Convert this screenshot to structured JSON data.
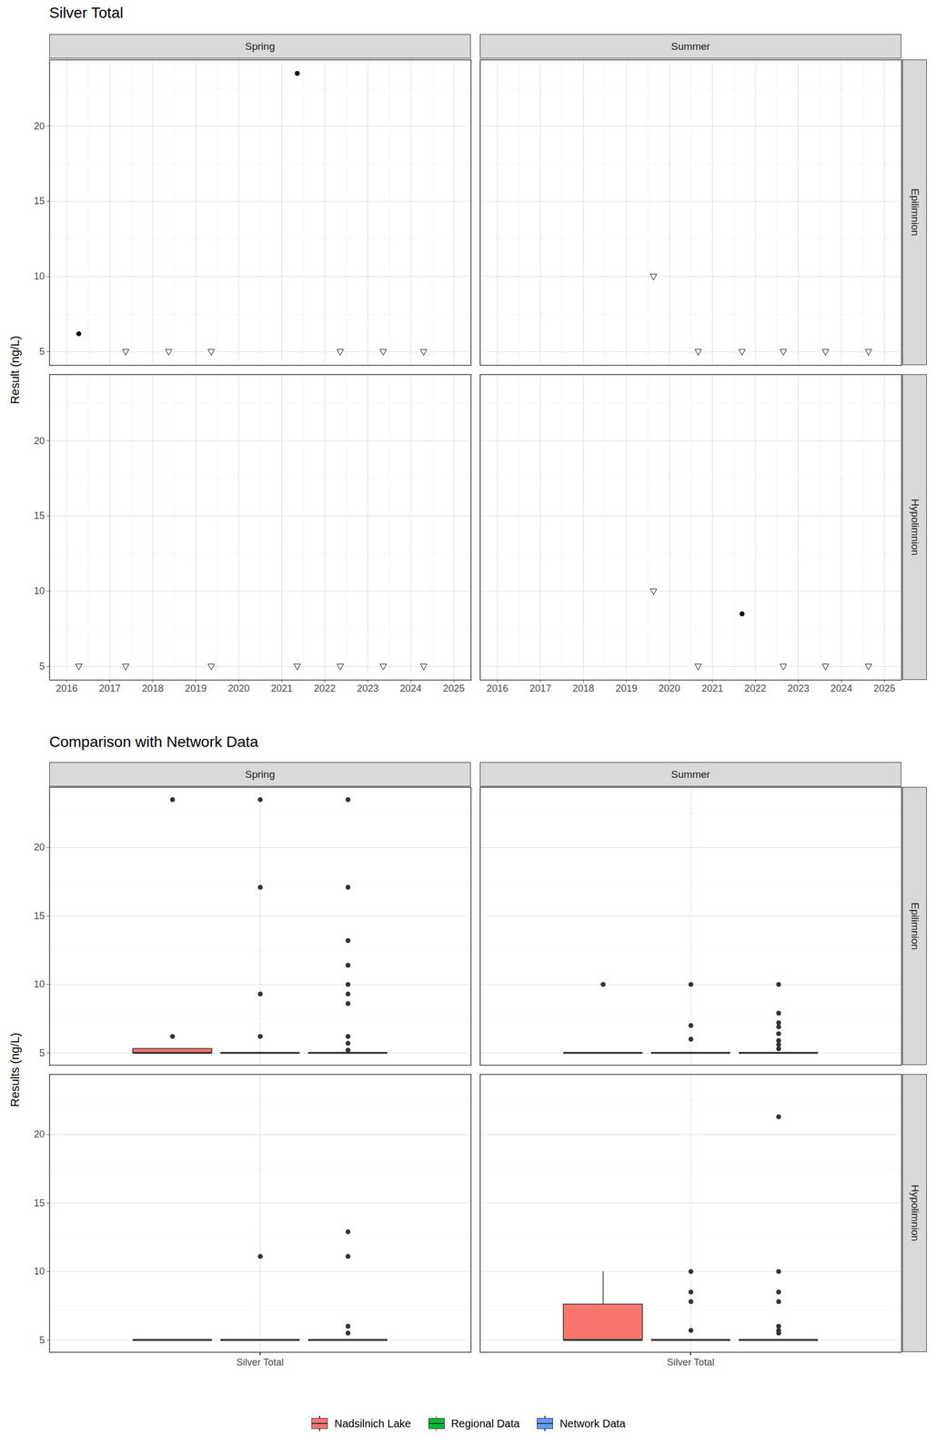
{
  "chart_data": [
    {
      "type": "scatter",
      "title": "Silver Total",
      "y_label": "Result (ng/L)",
      "columns": [
        "Spring",
        "Summer"
      ],
      "rows": [
        "Epilimnion",
        "Hypolimnion"
      ],
      "xlim": [
        2015.6,
        2025.4
      ],
      "xticks": [
        2016,
        2017,
        2018,
        2019,
        2020,
        2021,
        2022,
        2023,
        2024,
        2025
      ],
      "ylim": [
        4.1,
        24.4
      ],
      "yticks": [
        5,
        10,
        15,
        20
      ],
      "grid": true,
      "panels": [
        {
          "column": "Spring",
          "row": "Epilimnion",
          "points": [
            {
              "x": 2016.28,
              "y": 6.2,
              "marker": "circle"
            },
            {
              "x": 2017.37,
              "y": 5,
              "marker": "triangle-down"
            },
            {
              "x": 2018.37,
              "y": 5,
              "marker": "triangle-down"
            },
            {
              "x": 2019.36,
              "y": 5,
              "marker": "triangle-down"
            },
            {
              "x": 2021.36,
              "y": 23.5,
              "marker": "circle"
            },
            {
              "x": 2022.36,
              "y": 5,
              "marker": "triangle-down"
            },
            {
              "x": 2023.36,
              "y": 5,
              "marker": "triangle-down"
            },
            {
              "x": 2024.3,
              "y": 5,
              "marker": "triangle-down"
            }
          ]
        },
        {
          "column": "Summer",
          "row": "Epilimnion",
          "points": [
            {
              "x": 2019.63,
              "y": 10,
              "marker": "triangle-down"
            },
            {
              "x": 2020.67,
              "y": 5,
              "marker": "triangle-down"
            },
            {
              "x": 2021.69,
              "y": 5,
              "marker": "triangle-down"
            },
            {
              "x": 2022.65,
              "y": 5,
              "marker": "triangle-down"
            },
            {
              "x": 2023.63,
              "y": 5,
              "marker": "triangle-down"
            },
            {
              "x": 2024.63,
              "y": 5,
              "marker": "triangle-down"
            }
          ]
        },
        {
          "column": "Spring",
          "row": "Hypolimnion",
          "points": [
            {
              "x": 2016.28,
              "y": 5,
              "marker": "triangle-down"
            },
            {
              "x": 2017.37,
              "y": 5,
              "marker": "triangle-down"
            },
            {
              "x": 2019.36,
              "y": 5,
              "marker": "triangle-down"
            },
            {
              "x": 2021.36,
              "y": 5,
              "marker": "triangle-down"
            },
            {
              "x": 2022.36,
              "y": 5,
              "marker": "triangle-down"
            },
            {
              "x": 2023.36,
              "y": 5,
              "marker": "triangle-down"
            },
            {
              "x": 2024.3,
              "y": 5,
              "marker": "triangle-down"
            }
          ]
        },
        {
          "column": "Summer",
          "row": "Hypolimnion",
          "points": [
            {
              "x": 2019.63,
              "y": 10,
              "marker": "triangle-down"
            },
            {
              "x": 2020.67,
              "y": 5,
              "marker": "triangle-down"
            },
            {
              "x": 2021.69,
              "y": 8.5,
              "marker": "circle"
            },
            {
              "x": 2022.65,
              "y": 5,
              "marker": "triangle-down"
            },
            {
              "x": 2023.63,
              "y": 5,
              "marker": "triangle-down"
            },
            {
              "x": 2024.63,
              "y": 5,
              "marker": "triangle-down"
            }
          ]
        }
      ]
    },
    {
      "type": "box",
      "title": "Comparison with Network Data",
      "y_label": "Results (ng/L)",
      "categories": [
        "Silver Total"
      ],
      "columns": [
        "Spring",
        "Summer"
      ],
      "rows": [
        "Epilimnion",
        "Hypolimnion"
      ],
      "ylim": [
        4.1,
        24.4
      ],
      "yticks": [
        5,
        10,
        15,
        20
      ],
      "grid": true,
      "legend": "bottom",
      "series": [
        {
          "name": "Nadsilnich Lake",
          "color": "#F8766D"
        },
        {
          "name": "Regional Data",
          "color": "#00BA38"
        },
        {
          "name": "Network Data",
          "color": "#619CFF"
        }
      ],
      "panels": [
        {
          "column": "Spring",
          "row": "Epilimnion",
          "boxes": [
            {
              "series": "Nadsilnich Lake",
              "q1": 5,
              "median": 5,
              "q3": 5.3,
              "whisker_low": 5,
              "whisker_high": 5.3,
              "outliers": [
                6.2,
                23.5
              ]
            },
            {
              "series": "Regional Data",
              "q1": 5,
              "median": 5,
              "q3": 5,
              "whisker_low": 5,
              "whisker_high": 5,
              "outliers": [
                6.2,
                9.3,
                17.1,
                23.5
              ]
            },
            {
              "series": "Network Data",
              "q1": 5,
              "median": 5,
              "q3": 5,
              "whisker_low": 5,
              "whisker_high": 5,
              "outliers": [
                5.2,
                5.7,
                6.2,
                8.6,
                9.3,
                10,
                11.4,
                13.2,
                17.1,
                23.5
              ]
            }
          ]
        },
        {
          "column": "Summer",
          "row": "Epilimnion",
          "boxes": [
            {
              "series": "Nadsilnich Lake",
              "q1": 5,
              "median": 5,
              "q3": 5,
              "whisker_low": 5,
              "whisker_high": 5,
              "outliers": [
                10
              ]
            },
            {
              "series": "Regional Data",
              "q1": 5,
              "median": 5,
              "q3": 5,
              "whisker_low": 5,
              "whisker_high": 5,
              "outliers": [
                6,
                7,
                10
              ]
            },
            {
              "series": "Network Data",
              "q1": 5,
              "median": 5,
              "q3": 5,
              "whisker_low": 5,
              "whisker_high": 5,
              "outliers": [
                5.3,
                5.6,
                5.9,
                6.4,
                6.9,
                7.2,
                7.9,
                10
              ]
            }
          ]
        },
        {
          "column": "Spring",
          "row": "Hypolimnion",
          "boxes": [
            {
              "series": "Nadsilnich Lake",
              "q1": 5,
              "median": 5,
              "q3": 5,
              "whisker_low": 5,
              "whisker_high": 5,
              "outliers": []
            },
            {
              "series": "Regional Data",
              "q1": 5,
              "median": 5,
              "q3": 5,
              "whisker_low": 5,
              "whisker_high": 5,
              "outliers": [
                11.1
              ]
            },
            {
              "series": "Network Data",
              "q1": 5,
              "median": 5,
              "q3": 5,
              "whisker_low": 5,
              "whisker_high": 5,
              "outliers": [
                5.5,
                6,
                11.1,
                12.9
              ]
            }
          ]
        },
        {
          "column": "Summer",
          "row": "Hypolimnion",
          "boxes": [
            {
              "series": "Nadsilnich Lake",
              "q1": 5,
              "median": 5,
              "q3": 7.6,
              "whisker_low": 5,
              "whisker_high": 10,
              "outliers": []
            },
            {
              "series": "Regional Data",
              "q1": 5,
              "median": 5,
              "q3": 5,
              "whisker_low": 5,
              "whisker_high": 5,
              "outliers": [
                5.7,
                7.8,
                8.5,
                10
              ]
            },
            {
              "series": "Network Data",
              "q1": 5,
              "median": 5,
              "q3": 5,
              "whisker_low": 5,
              "whisker_high": 5,
              "outliers": [
                5.5,
                5.7,
                6,
                7.8,
                8.5,
                10,
                21.3
              ]
            }
          ]
        }
      ]
    }
  ]
}
